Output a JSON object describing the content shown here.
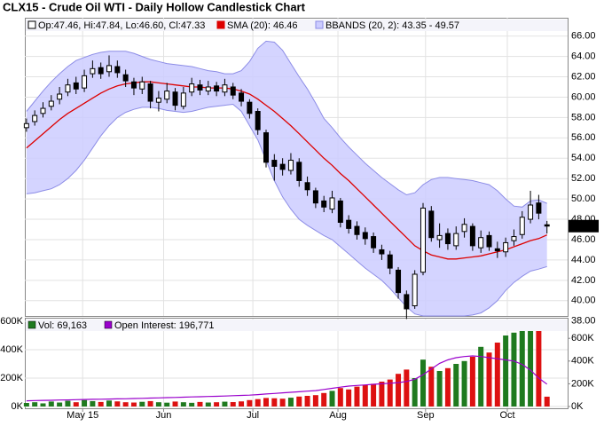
{
  "chart_data": [
    {
      "type": "candlestick",
      "title": "CLX15 - Crude Oil WTI - Daily Hollow Candlestick Chart",
      "legend": "Op:47.46, Hi:47.84, Lo:46.60, Cl:47.33",
      "color": "#000000",
      "open": [
        57.0,
        57.6,
        58.4,
        59.1,
        59.8,
        60.5,
        61.4,
        60.9,
        62.3,
        62.9,
        62.5,
        63.0,
        62.2,
        61.5,
        60.8,
        61.3,
        59.5,
        59.8,
        60.5,
        59.1,
        60.5,
        61.2,
        60.6,
        61.1,
        60.5,
        61.0,
        60.4,
        59.5,
        58.6,
        56.5,
        53.8,
        53.4,
        52.8,
        53.6,
        51.6,
        50.8,
        49.8,
        49.0,
        49.8,
        47.9,
        47.3,
        46.7,
        46.3,
        45.0,
        44.5,
        43.0,
        40.6,
        39.5,
        42.8,
        48.8,
        46.0,
        46.6,
        45.4,
        46.8,
        47.3,
        45.2,
        46.4,
        45.1,
        44.8,
        45.9,
        46.5,
        48.0,
        49.6,
        47.46
      ],
      "high": [
        57.9,
        58.7,
        59.5,
        60.2,
        61.0,
        61.8,
        62.0,
        62.7,
        63.6,
        63.4,
        64.1,
        63.6,
        62.7,
        61.9,
        62.0,
        61.6,
        60.6,
        61.4,
        60.9,
        61.0,
        61.9,
        61.7,
        61.6,
        61.5,
        61.8,
        61.4,
        60.8,
        59.8,
        58.9,
        56.8,
        54.4,
        54.0,
        54.5,
        54.0,
        52.2,
        51.1,
        50.3,
        50.8,
        50.1,
        48.4,
        47.8,
        47.2,
        46.7,
        45.5,
        44.9,
        43.3,
        41.0,
        43.0,
        49.6,
        49.3,
        47.6,
        47.1,
        47.3,
        48.1,
        47.6,
        46.9,
        46.8,
        45.8,
        46.2,
        47.0,
        48.8,
        50.8,
        50.4,
        47.84
      ],
      "low": [
        56.6,
        57.2,
        58.0,
        58.7,
        59.3,
        60.1,
        60.3,
        60.5,
        61.9,
        61.8,
        62.0,
        61.9,
        61.0,
        60.2,
        60.3,
        58.9,
        58.6,
        59.4,
        58.7,
        58.8,
        60.1,
        60.2,
        60.2,
        60.1,
        60.1,
        59.8,
        59.1,
        57.9,
        56.3,
        53.1,
        51.8,
        52.3,
        52.4,
        51.2,
        50.3,
        49.1,
        48.7,
        48.6,
        47.2,
        46.6,
        46.0,
        45.5,
        44.7,
        44.0,
        42.6,
        40.2,
        38.2,
        39.2,
        42.5,
        45.8,
        45.2,
        45.0,
        45.0,
        46.2,
        44.9,
        44.7,
        44.9,
        44.2,
        44.3,
        45.4,
        46.1,
        47.6,
        48.0,
        46.6
      ],
      "close": [
        57.4,
        58.2,
        58.9,
        59.6,
        60.3,
        61.2,
        60.8,
        62.1,
        62.8,
        62.3,
        63.1,
        62.4,
        61.6,
        60.9,
        61.5,
        59.6,
        59.9,
        60.6,
        59.2,
        60.4,
        61.3,
        60.7,
        61.0,
        60.6,
        61.2,
        60.2,
        59.6,
        58.4,
        56.8,
        53.6,
        53.2,
        52.9,
        53.8,
        51.8,
        50.9,
        49.6,
        49.2,
        50.1,
        47.7,
        47.1,
        46.5,
        46.1,
        45.2,
        44.6,
        43.2,
        40.8,
        39.2,
        42.6,
        49.1,
        46.2,
        46.4,
        45.6,
        46.6,
        47.5,
        45.4,
        46.2,
        45.3,
        44.9,
        45.7,
        46.3,
        48.2,
        49.4,
        48.6,
        47.33
      ],
      "last_label": "47.33",
      "series": [
        {
          "name": "SMA (20): 46.46",
          "type": "line",
          "color": "#dd0000",
          "values": [
            55.0,
            55.7,
            56.4,
            57.1,
            57.8,
            58.4,
            58.9,
            59.4,
            59.9,
            60.4,
            60.8,
            61.1,
            61.3,
            61.4,
            61.5,
            61.5,
            61.4,
            61.3,
            61.2,
            61.1,
            61.0,
            61.0,
            60.9,
            60.9,
            60.9,
            60.8,
            60.6,
            60.3,
            59.8,
            59.2,
            58.6,
            57.9,
            57.2,
            56.4,
            55.6,
            54.8,
            54.0,
            53.3,
            52.5,
            51.8,
            51.0,
            50.2,
            49.4,
            48.6,
            47.8,
            47.0,
            46.2,
            45.4,
            44.9,
            44.5,
            44.3,
            44.1,
            44.1,
            44.2,
            44.3,
            44.4,
            44.6,
            44.8,
            45.0,
            45.3,
            45.6,
            45.9,
            46.1,
            46.46
          ]
        },
        {
          "name": "BBANDS (20, 2): 43.35 - 49.57",
          "type": "band",
          "color": "#8c8ce6",
          "fill": "#ccccff",
          "upper": [
            58.6,
            59.6,
            60.6,
            61.5,
            62.3,
            63.0,
            63.6,
            63.9,
            64.2,
            64.4,
            64.5,
            64.5,
            64.5,
            64.3,
            64.0,
            63.7,
            63.5,
            63.3,
            63.2,
            63.1,
            63.0,
            62.8,
            62.6,
            62.5,
            62.3,
            62.3,
            62.6,
            63.5,
            64.8,
            65.5,
            65.4,
            64.6,
            63.3,
            62.0,
            60.8,
            59.4,
            57.9,
            57.0,
            56.0,
            55.1,
            54.3,
            53.5,
            52.8,
            52.1,
            51.5,
            50.9,
            50.4,
            50.6,
            51.4,
            51.9,
            52.1,
            52.1,
            52.0,
            51.9,
            51.8,
            51.6,
            51.4,
            50.8,
            50.0,
            49.3,
            49.2,
            49.8,
            49.9,
            49.57
          ],
          "lower": [
            50.5,
            50.6,
            50.8,
            51.0,
            51.4,
            52.0,
            52.8,
            53.8,
            55.0,
            56.2,
            57.2,
            58.0,
            58.5,
            58.8,
            59.0,
            59.0,
            58.9,
            58.7,
            58.6,
            58.5,
            58.6,
            58.8,
            59.0,
            59.1,
            59.2,
            59.3,
            58.6,
            57.2,
            55.8,
            53.8,
            51.8,
            50.2,
            49.0,
            48.0,
            47.4,
            46.9,
            46.4,
            46.0,
            45.3,
            44.6,
            43.9,
            43.2,
            42.6,
            42.0,
            41.2,
            40.3,
            39.4,
            38.7,
            38.5,
            38.5,
            38.5,
            38.5,
            38.5,
            38.5,
            38.6,
            38.8,
            39.3,
            40.0,
            41.0,
            41.8,
            42.4,
            42.9,
            43.1,
            43.35
          ]
        }
      ],
      "xlim": [
        -0.2,
        65.5
      ],
      "ylim": [
        38.5,
        67.8
      ],
      "yticks": [
        {
          "value": 38,
          "label": "38.00"
        },
        {
          "value": 40,
          "label": "40.00"
        },
        {
          "value": 42,
          "label": "42.00"
        },
        {
          "value": 44,
          "label": "44.00"
        },
        {
          "value": 46,
          "label": "46.00"
        },
        {
          "value": 48,
          "label": "48.00"
        },
        {
          "value": 50,
          "label": "50.00"
        },
        {
          "value": 52,
          "label": "52.00"
        },
        {
          "value": 54,
          "label": "54.00"
        },
        {
          "value": 56,
          "label": "56.00"
        },
        {
          "value": 58,
          "label": "58.00"
        },
        {
          "value": 60,
          "label": "60.00"
        },
        {
          "value": 62,
          "label": "62.00"
        },
        {
          "value": 64,
          "label": "64.00"
        },
        {
          "value": 66,
          "label": "66.00"
        }
      ],
      "grid": true
    },
    {
      "type": "bar",
      "series": [
        {
          "name": "Vol: 69,163",
          "type": "bar",
          "color": "#1f7a1f",
          "down_color": "#dd1111",
          "values": [
            25000,
            30000,
            22000,
            35000,
            28000,
            40000,
            30000,
            45000,
            38000,
            32000,
            42000,
            36000,
            30000,
            28000,
            33000,
            38000,
            30000,
            27000,
            35000,
            30000,
            26000,
            32000,
            28000,
            30000,
            34000,
            31000,
            36000,
            45000,
            52000,
            60000,
            58000,
            55000,
            62000,
            70000,
            75000,
            80000,
            95000,
            110000,
            130000,
            120000,
            140000,
            150000,
            160000,
            175000,
            190000,
            230000,
            260000,
            200000,
            330000,
            280000,
            250000,
            270000,
            300000,
            320000,
            350000,
            420000,
            380000,
            450000,
            500000,
            520000,
            560000,
            590000,
            540000,
            69163
          ]
        },
        {
          "name": "Open Interest: 196,771",
          "type": "line",
          "axis": "y2",
          "color": "#9900cc",
          "values": [
            50000,
            52000,
            54000,
            55000,
            57000,
            58000,
            60000,
            62000,
            63000,
            64000,
            66000,
            67000,
            68000,
            70000,
            72000,
            74000,
            76000,
            78000,
            80000,
            82000,
            84000,
            86000,
            88000,
            90000,
            92000,
            95000,
            98000,
            100000,
            105000,
            110000,
            115000,
            120000,
            125000,
            130000,
            135000,
            140000,
            150000,
            160000,
            170000,
            180000,
            185000,
            190000,
            195000,
            200000,
            205000,
            210000,
            220000,
            240000,
            280000,
            330000,
            380000,
            410000,
            430000,
            440000,
            445000,
            440000,
            430000,
            420000,
            410000,
            400000,
            370000,
            320000,
            250000,
            196771
          ]
        }
      ],
      "xlim": [
        -0.2,
        65.5
      ],
      "xticks": [
        {
          "value": 6.8,
          "label": "May 15"
        },
        {
          "value": 16.6,
          "label": "Jun"
        },
        {
          "value": 27.4,
          "label": "Jul"
        },
        {
          "value": 37.7,
          "label": "Aug"
        },
        {
          "value": 48.3,
          "label": "Sep"
        },
        {
          "value": 58.2,
          "label": "Oct"
        }
      ],
      "ylim": [
        0,
        600000
      ],
      "yticks": [
        {
          "value": 0,
          "label": "0K"
        },
        {
          "value": 200000,
          "label": "200K"
        },
        {
          "value": 400000,
          "label": "400K"
        },
        {
          "value": 600000,
          "label": "600K"
        }
      ],
      "y2lim": [
        0,
        750000
      ],
      "y2ticks": [
        {
          "value": 0,
          "label": "0K"
        },
        {
          "value": 200000,
          "label": "200K"
        },
        {
          "value": 400000,
          "label": "400K"
        },
        {
          "value": 600000,
          "label": "600K"
        }
      ],
      "grid": true
    }
  ]
}
